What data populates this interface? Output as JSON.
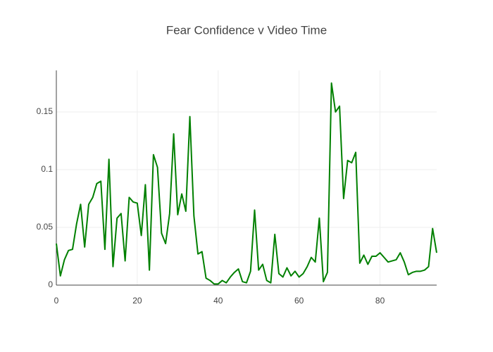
{
  "chart_data": {
    "type": "line",
    "title": "Fear Confidence v Video Time",
    "x": [
      0,
      1,
      2,
      3,
      4,
      5,
      6,
      7,
      8,
      9,
      10,
      11,
      12,
      13,
      14,
      15,
      16,
      17,
      18,
      19,
      20,
      21,
      22,
      23,
      24,
      25,
      26,
      27,
      28,
      29,
      30,
      31,
      32,
      33,
      34,
      35,
      36,
      37,
      38,
      39,
      40,
      41,
      42,
      43,
      44,
      45,
      46,
      47,
      48,
      49,
      50,
      51,
      52,
      53,
      54,
      55,
      56,
      57,
      58,
      59,
      60,
      61,
      62,
      63,
      64,
      65,
      66,
      67,
      68,
      69,
      70,
      71,
      72,
      73,
      74,
      75,
      76,
      77,
      78,
      79,
      80,
      81,
      82,
      83,
      84,
      85,
      86,
      87,
      88,
      89,
      90,
      91,
      92,
      93,
      94
    ],
    "series": [
      {
        "name": "Fear",
        "color": "#008000",
        "values": [
          0.036,
          0.008,
          0.022,
          0.03,
          0.031,
          0.053,
          0.07,
          0.033,
          0.07,
          0.076,
          0.088,
          0.09,
          0.031,
          0.109,
          0.016,
          0.058,
          0.062,
          0.021,
          0.076,
          0.072,
          0.071,
          0.043,
          0.087,
          0.013,
          0.113,
          0.102,
          0.045,
          0.036,
          0.062,
          0.131,
          0.061,
          0.079,
          0.064,
          0.146,
          0.06,
          0.027,
          0.029,
          0.006,
          0.004,
          0.001,
          0.001,
          0.004,
          0.002,
          0.007,
          0.011,
          0.014,
          0.003,
          0.002,
          0.012,
          0.065,
          0.013,
          0.018,
          0.004,
          0.002,
          0.044,
          0.01,
          0.007,
          0.015,
          0.008,
          0.012,
          0.007,
          0.01,
          0.016,
          0.024,
          0.02,
          0.058,
          0.003,
          0.011,
          0.175,
          0.15,
          0.155,
          0.075,
          0.108,
          0.106,
          0.115,
          0.019,
          0.026,
          0.018,
          0.025,
          0.025,
          0.028,
          0.024,
          0.02,
          0.021,
          0.022,
          0.028,
          0.02,
          0.009,
          0.011,
          0.012,
          0.012,
          0.013,
          0.016,
          0.049,
          0.028
        ]
      }
    ],
    "xlim": [
      0,
      94
    ],
    "ylim": [
      0,
      0.186
    ],
    "xticks": [
      0,
      20,
      40,
      60,
      80
    ],
    "yticks": [
      0,
      0.05,
      0.1,
      0.15
    ],
    "grid": true
  }
}
